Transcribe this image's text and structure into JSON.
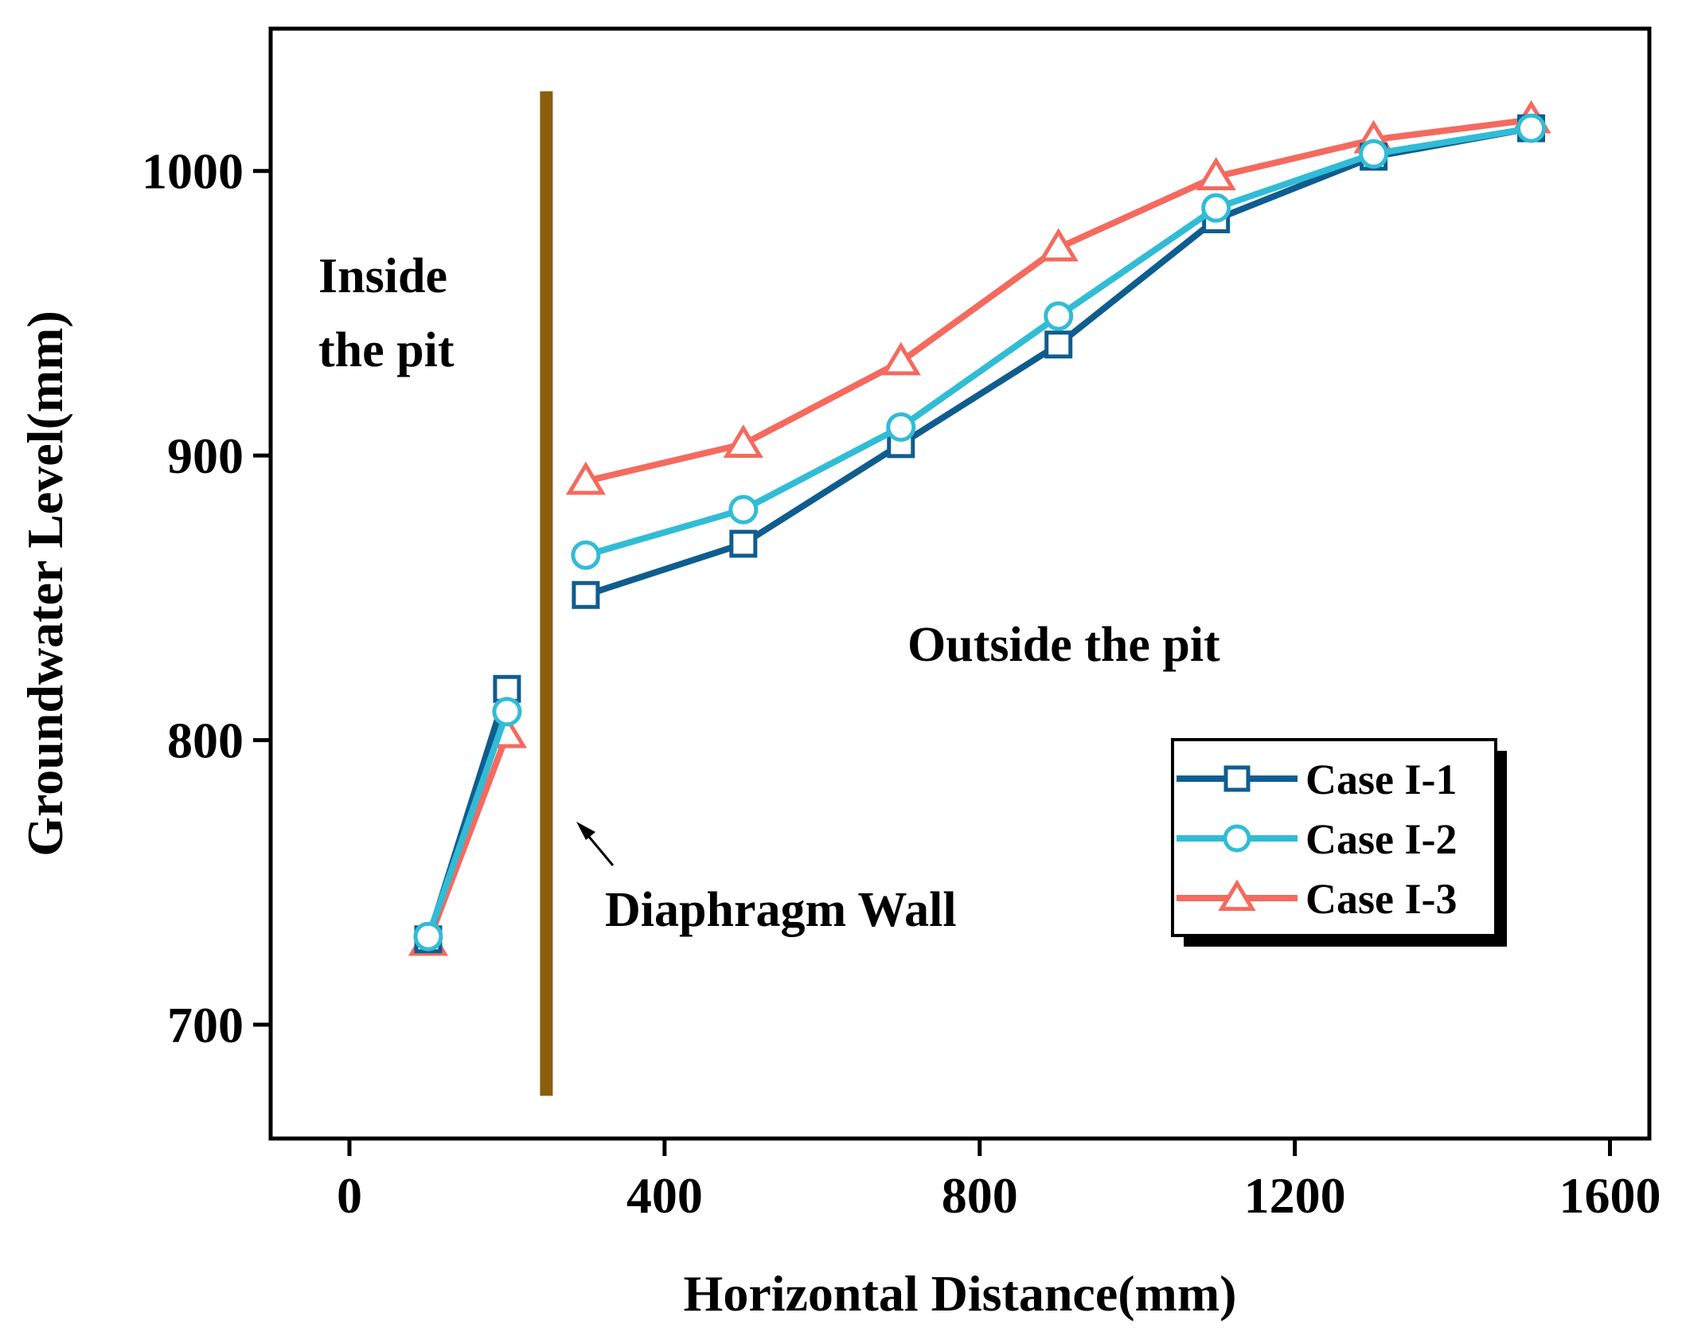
{
  "chart_data": {
    "type": "line",
    "title": "",
    "xlabel": "Horizontal Distance(mm)",
    "ylabel": "Groundwater Level(mm)",
    "xlim": [
      -100,
      1650
    ],
    "ylim": [
      660,
      1050
    ],
    "xticks": [
      0,
      400,
      800,
      1200,
      1600
    ],
    "yticks": [
      700,
      800,
      900,
      1000
    ],
    "grid": false,
    "legend_position": "bottom-right",
    "series": [
      {
        "name": "Case I-1",
        "color": "#0f5d8f",
        "marker": "square",
        "segments": [
          [
            [
              100,
              730
            ],
            [
              200,
              818
            ]
          ],
          [
            [
              300,
              851
            ],
            [
              500,
              869
            ],
            [
              700,
              904
            ],
            [
              900,
              939
            ],
            [
              1100,
              983
            ],
            [
              1300,
              1005
            ],
            [
              1500,
              1015
            ]
          ]
        ]
      },
      {
        "name": "Case I-2",
        "color": "#31bcd6",
        "marker": "circle",
        "segments": [
          [
            [
              100,
              731
            ],
            [
              200,
              810
            ]
          ],
          [
            [
              300,
              865
            ],
            [
              500,
              881
            ],
            [
              700,
              910
            ],
            [
              900,
              949
            ],
            [
              1100,
              987
            ],
            [
              1300,
              1006
            ],
            [
              1500,
              1015
            ]
          ]
        ]
      },
      {
        "name": "Case I-3",
        "color": "#f46a5e",
        "marker": "triangle",
        "segments": [
          [
            [
              100,
              729
            ],
            [
              200,
              802
            ]
          ],
          [
            [
              300,
              891
            ],
            [
              500,
              904
            ],
            [
              700,
              933
            ],
            [
              900,
              973
            ],
            [
              1100,
              998
            ],
            [
              1300,
              1011
            ],
            [
              1500,
              1018
            ]
          ]
        ]
      }
    ],
    "wall": {
      "x": 250,
      "y_range": [
        675,
        1028
      ],
      "color": "#8b5e0c"
    },
    "annotations": {
      "inside_line1": "Inside",
      "inside_line2": "the pit",
      "outside": "Outside the pit",
      "wall_label": "Diaphragm Wall"
    }
  }
}
